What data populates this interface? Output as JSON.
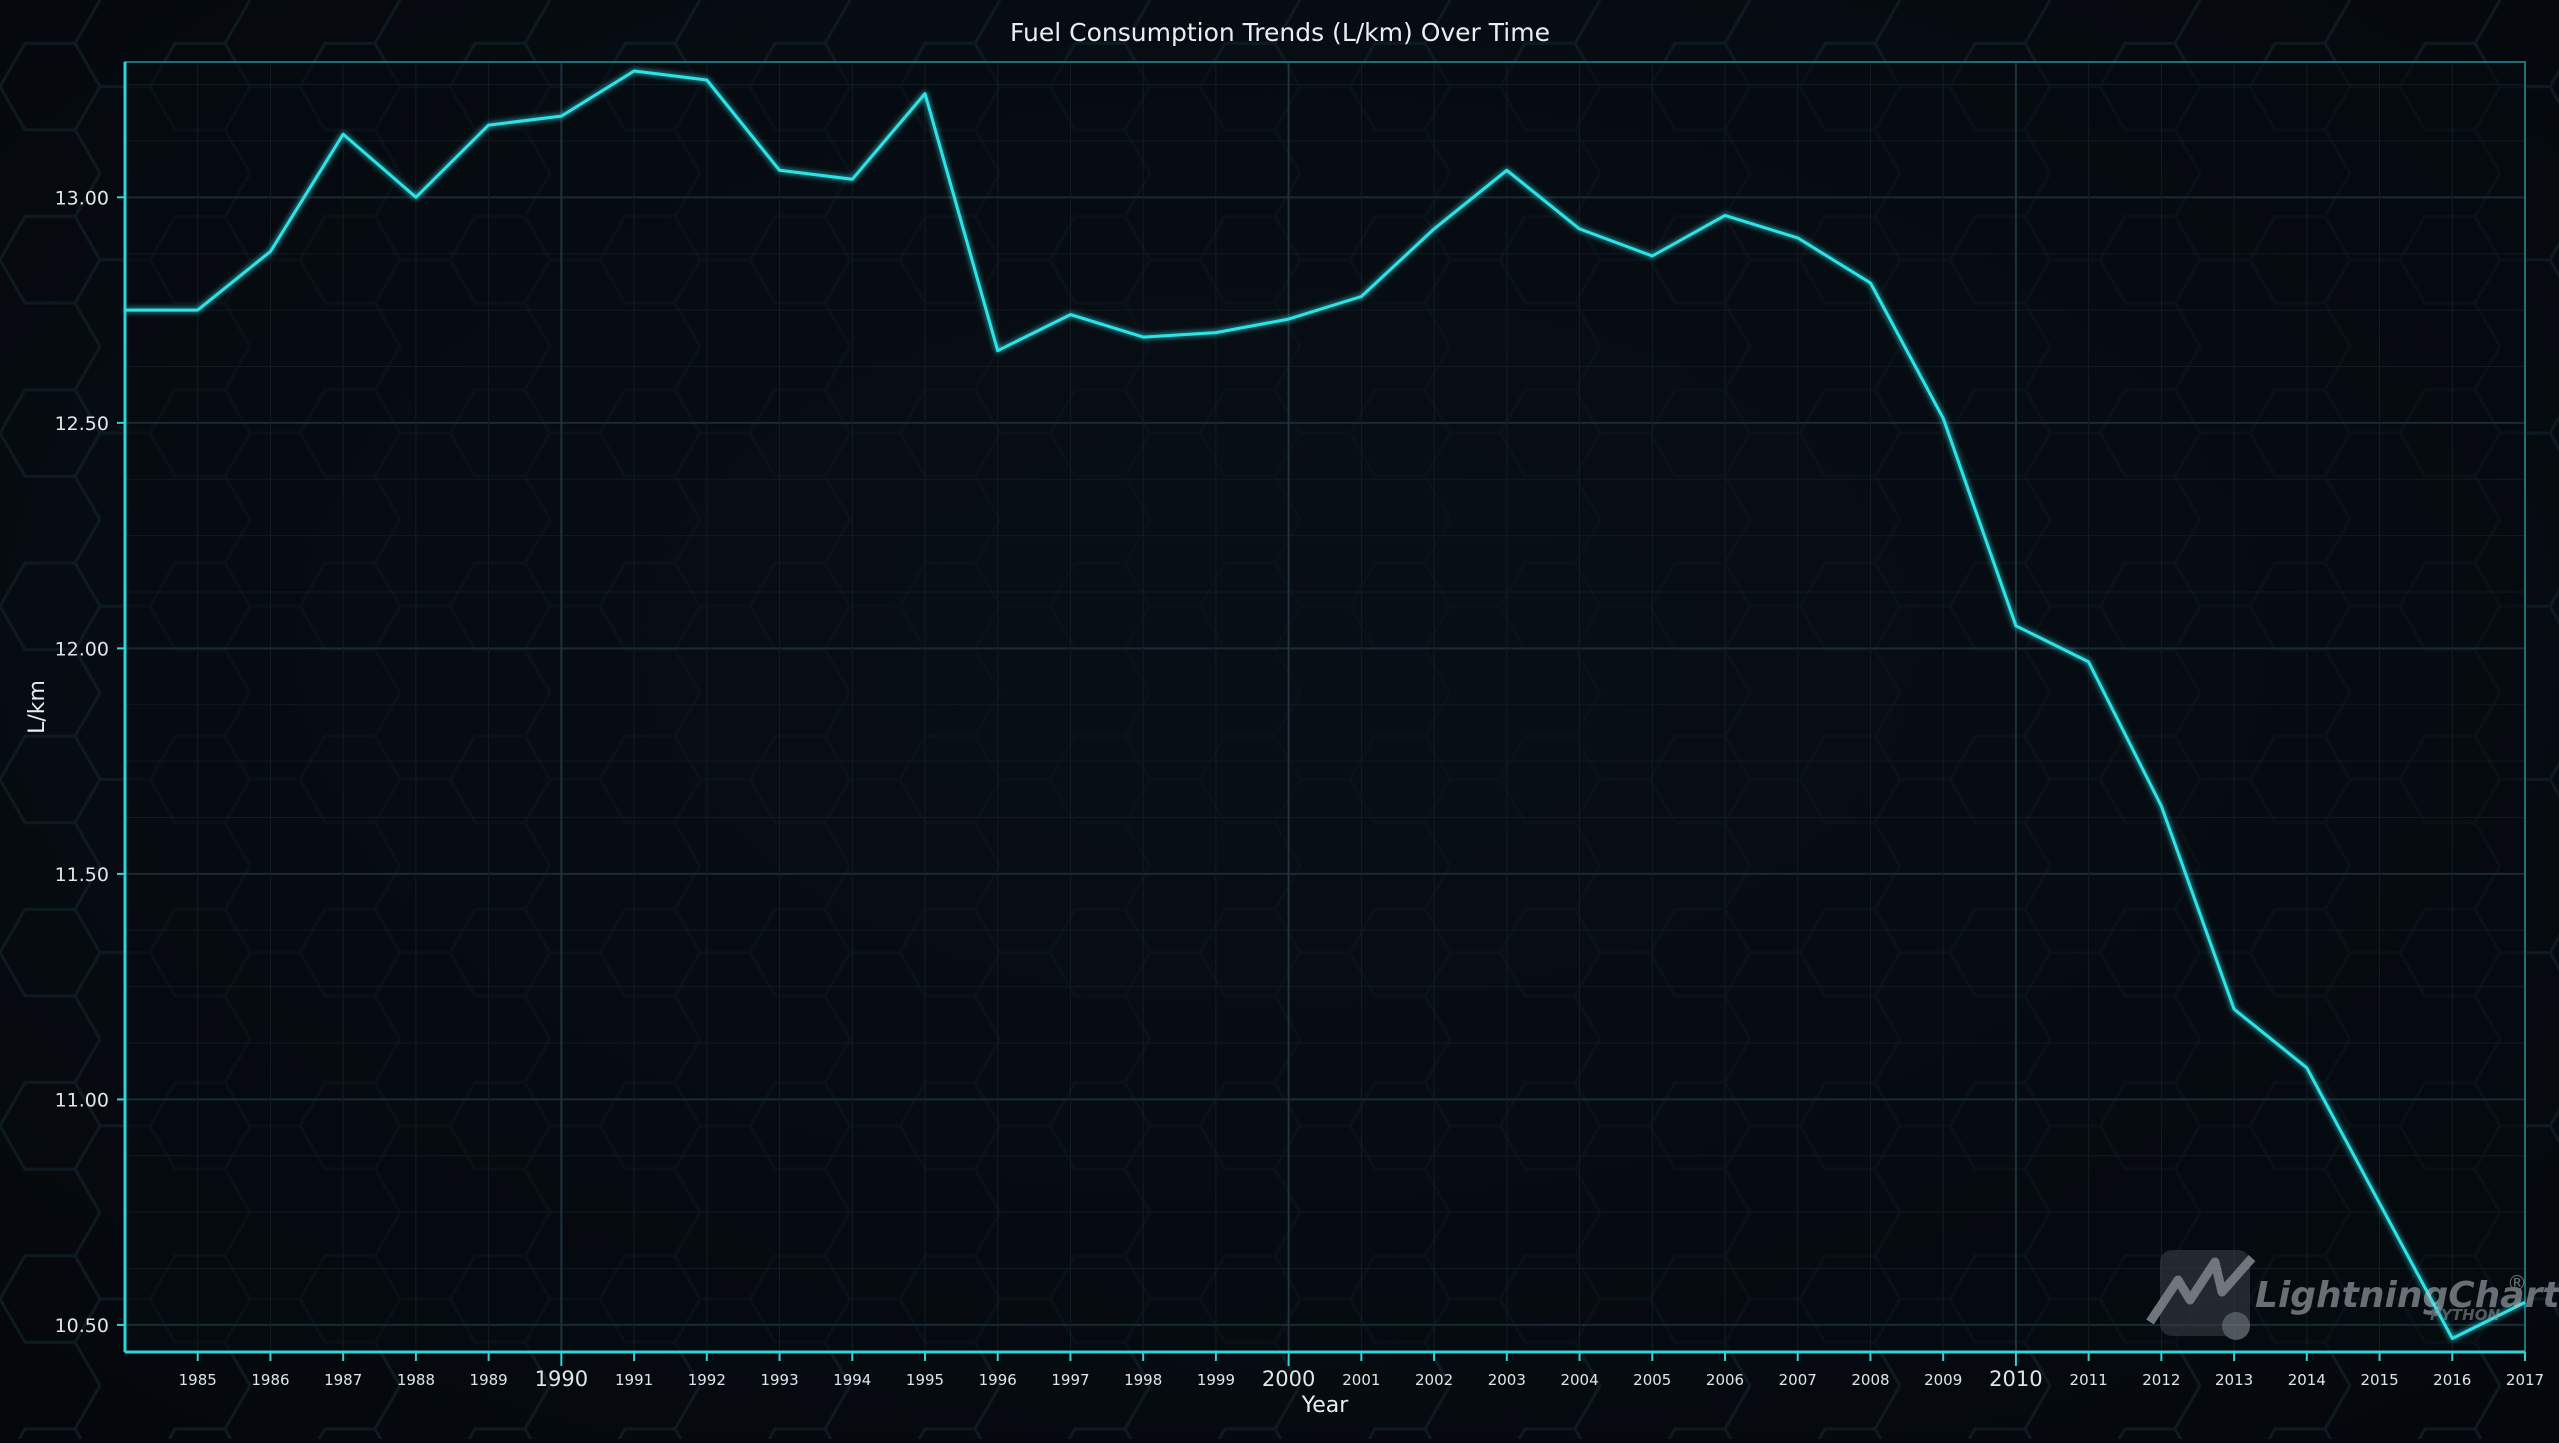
{
  "chart_data": {
    "type": "line",
    "title": "Fuel Consumption Trends (L/km) Over Time",
    "xlabel": "Year",
    "ylabel": "L/km",
    "xlim": [
      1984,
      2017
    ],
    "ylim": [
      10.44,
      13.3
    ],
    "y_ticks": [
      10.5,
      11.0,
      11.5,
      12.0,
      12.5,
      13.0
    ],
    "y_tick_labels": [
      "10.50",
      "11.00",
      "11.50",
      "12.00",
      "12.50",
      "13.00"
    ],
    "x_ticks": [
      1985,
      1986,
      1987,
      1988,
      1989,
      1990,
      1991,
      1992,
      1993,
      1994,
      1995,
      1996,
      1997,
      1998,
      1999,
      2000,
      2001,
      2002,
      2003,
      2004,
      2005,
      2006,
      2007,
      2008,
      2009,
      2010,
      2011,
      2012,
      2013,
      2014,
      2015,
      2016,
      2017
    ],
    "x_major_ticks": [
      1990,
      2000,
      2010
    ],
    "grid": true,
    "line_color": "#2fe3e6",
    "series": [
      {
        "x": [
          1984,
          1985,
          1986,
          1987,
          1988,
          1989,
          1990,
          1991,
          1992,
          1993,
          1994,
          1995,
          1996,
          1997,
          1998,
          1999,
          2000,
          2001,
          2002,
          2003,
          2004,
          2005,
          2006,
          2007,
          2008,
          2009,
          2010,
          2011,
          2012,
          2013,
          2014,
          2015,
          2016,
          2017
        ],
        "values": [
          12.75,
          12.75,
          12.88,
          13.14,
          13.0,
          13.16,
          13.18,
          13.28,
          13.26,
          13.06,
          13.04,
          13.23,
          12.66,
          12.74,
          12.69,
          12.7,
          12.73,
          12.78,
          12.93,
          13.06,
          12.93,
          12.87,
          12.96,
          12.91,
          12.81,
          12.51,
          12.05,
          11.97,
          11.65,
          11.2,
          11.07,
          10.77,
          10.47,
          10.55
        ]
      }
    ],
    "watermark": {
      "brand": "LightningChart",
      "mark": "®",
      "sub": "PYTHON"
    }
  }
}
